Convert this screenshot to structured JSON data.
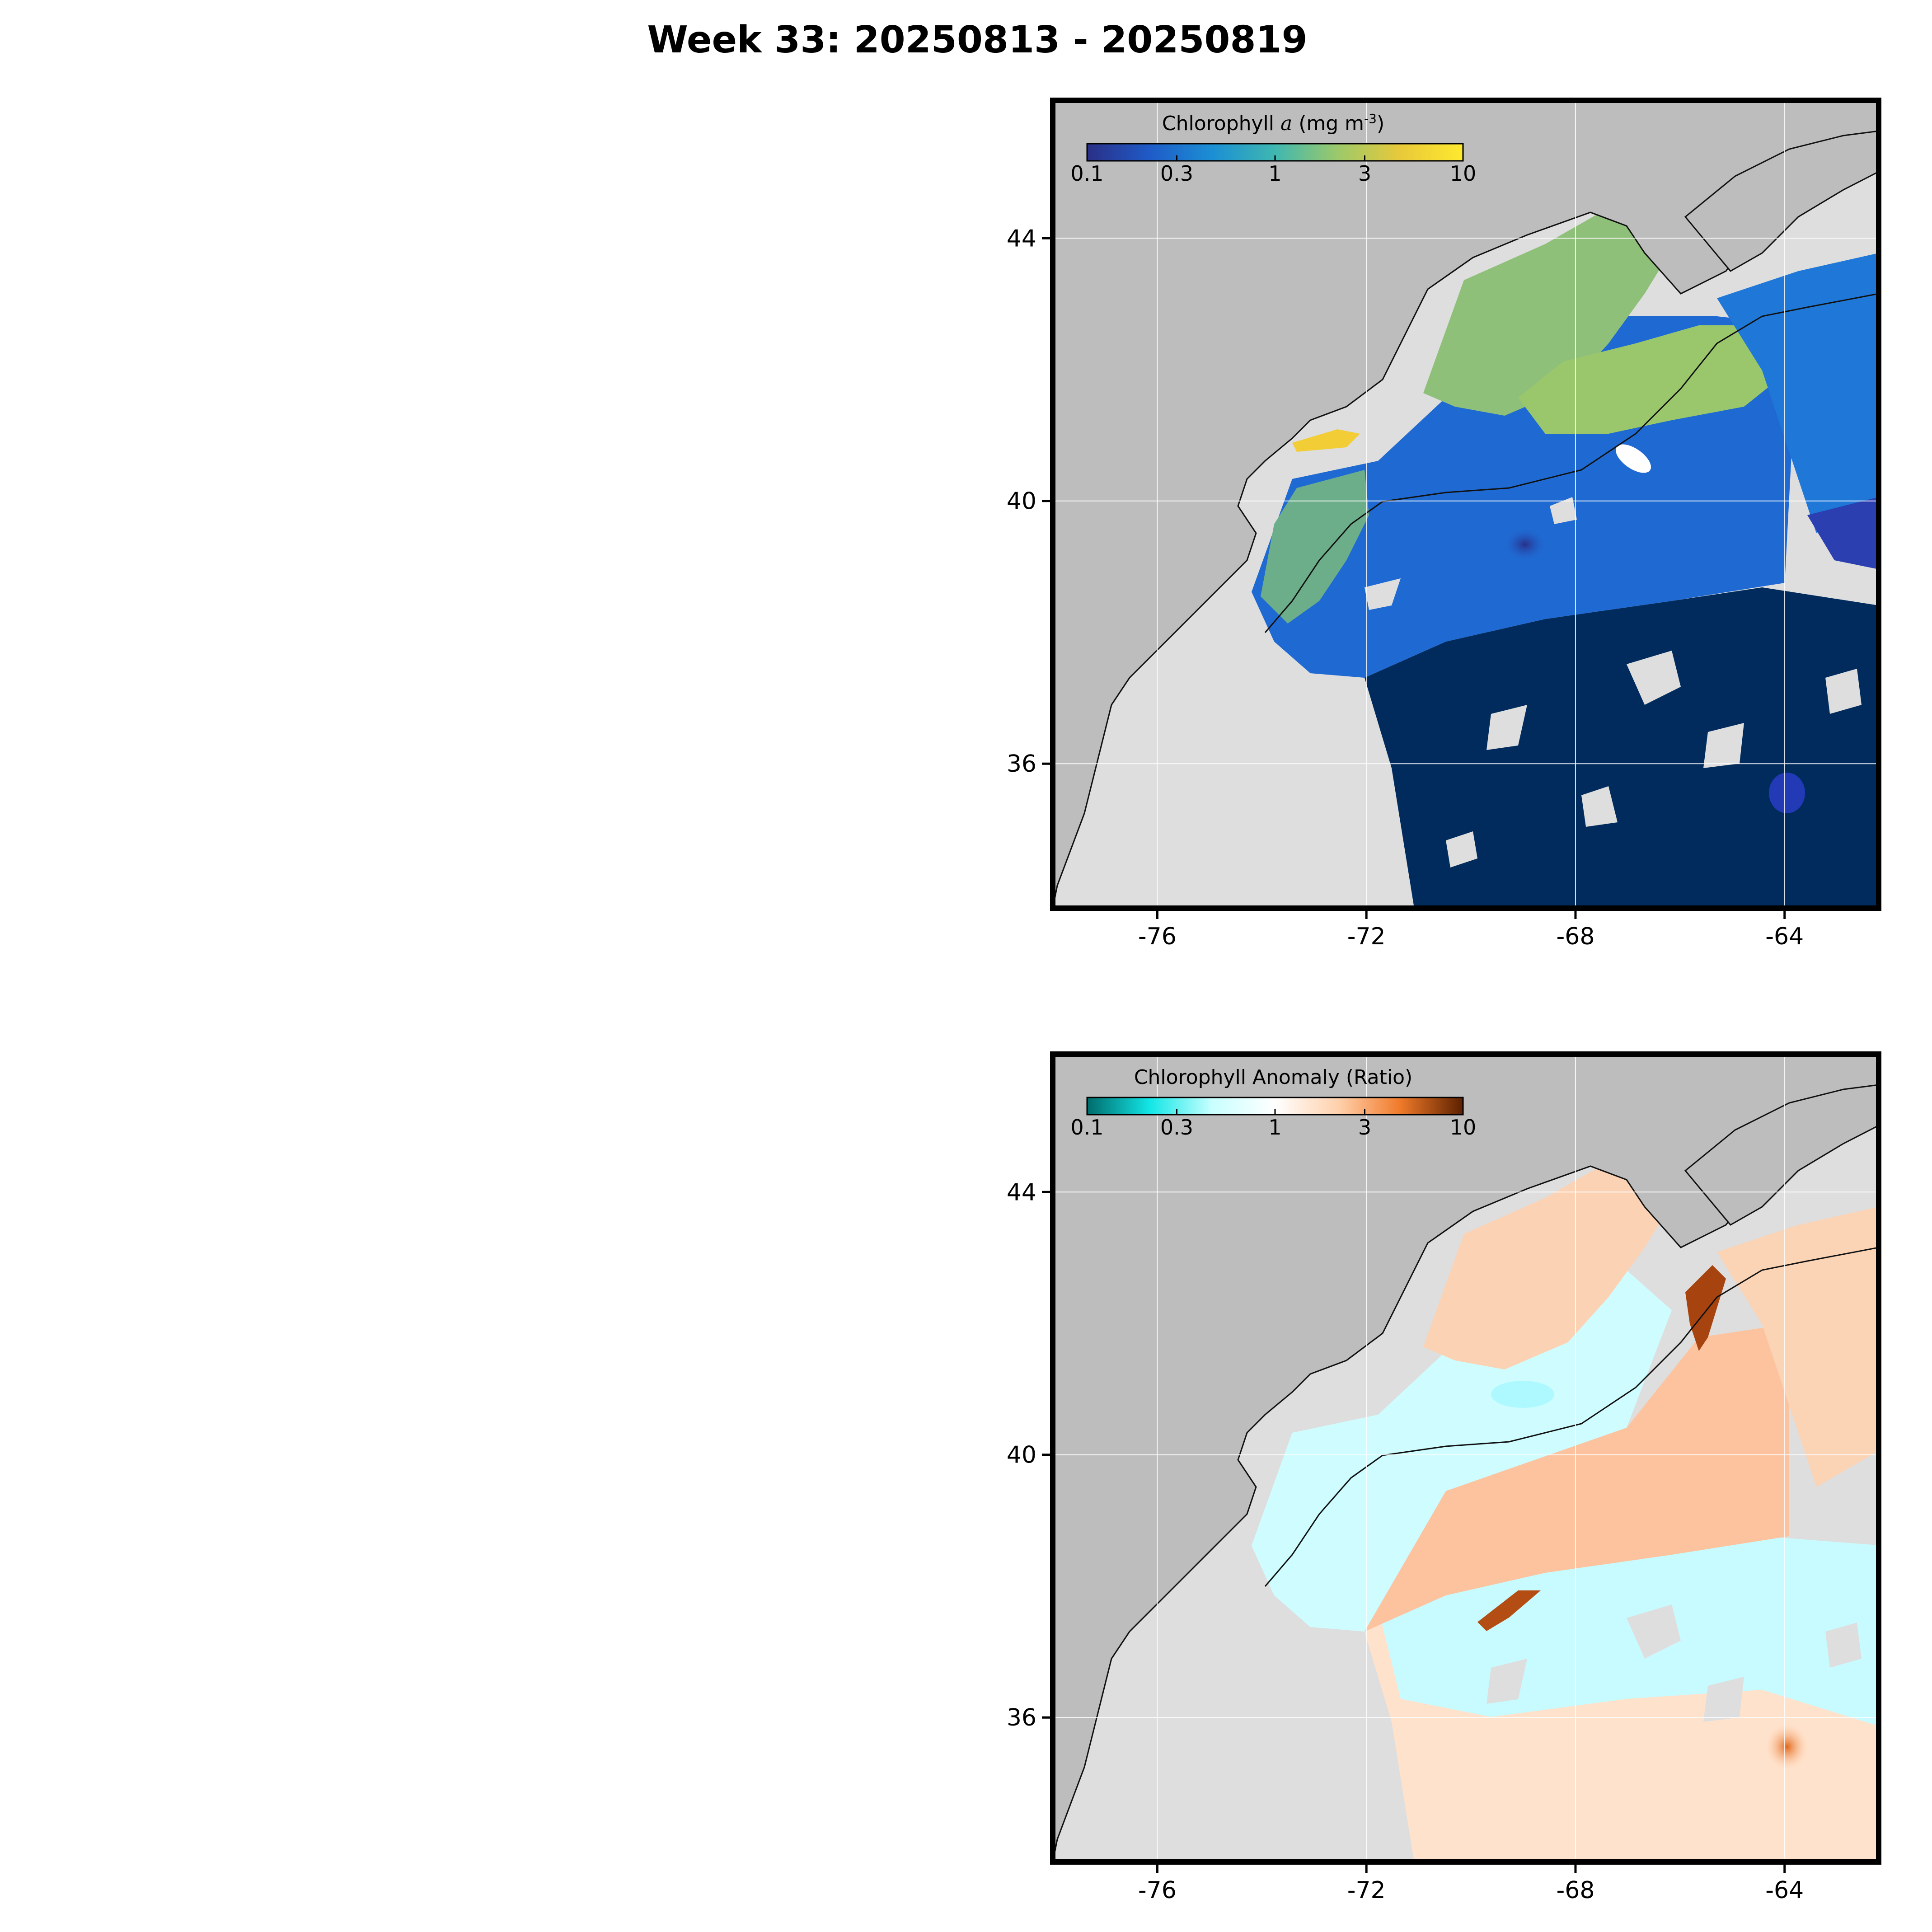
{
  "figure": {
    "title": "Week 33: 20250813 - 20250819"
  },
  "axes": {
    "lon_range": [
      -78,
      -62.2
    ],
    "lat_range": [
      33.8,
      46.1
    ],
    "lon_ticks": [
      "-76",
      "-72",
      "-68",
      "-64"
    ],
    "lat_ticks": [
      "44",
      "40",
      "36"
    ],
    "grid": true
  },
  "colors": {
    "land": "#bdbdbd",
    "no_data": "#dedede",
    "coast": "#111111",
    "frame": "#000000"
  },
  "panels": [
    {
      "id": "chlorophyll",
      "colorbar": {
        "title_prefix": "Chlorophyll ",
        "title_italic": "a",
        "title_unit": " (mg m",
        "title_sup": "-3",
        "title_close": ")",
        "tick_labels": [
          "0.1",
          "0.3",
          "1",
          "3",
          "10"
        ],
        "scale": "log",
        "range": [
          0.1,
          10
        ],
        "stops": [
          "#2a2f86",
          "#1f5bc8",
          "#1b8fd4",
          "#3fb7b0",
          "#9cc96a",
          "#e8c93a",
          "#ffe92e"
        ]
      }
    },
    {
      "id": "anomaly",
      "colorbar": {
        "title": "Chlorophyll Anomaly (Ratio)",
        "tick_labels": [
          "0.1",
          "0.3",
          "1",
          "3",
          "10"
        ],
        "scale": "log",
        "range": [
          0.1,
          10
        ],
        "stops": [
          "#006b6b",
          "#13e6e6",
          "#c9ffff",
          "#ffffff",
          "#ffd1ad",
          "#f07a2a",
          "#5c2000"
        ]
      }
    }
  ]
}
